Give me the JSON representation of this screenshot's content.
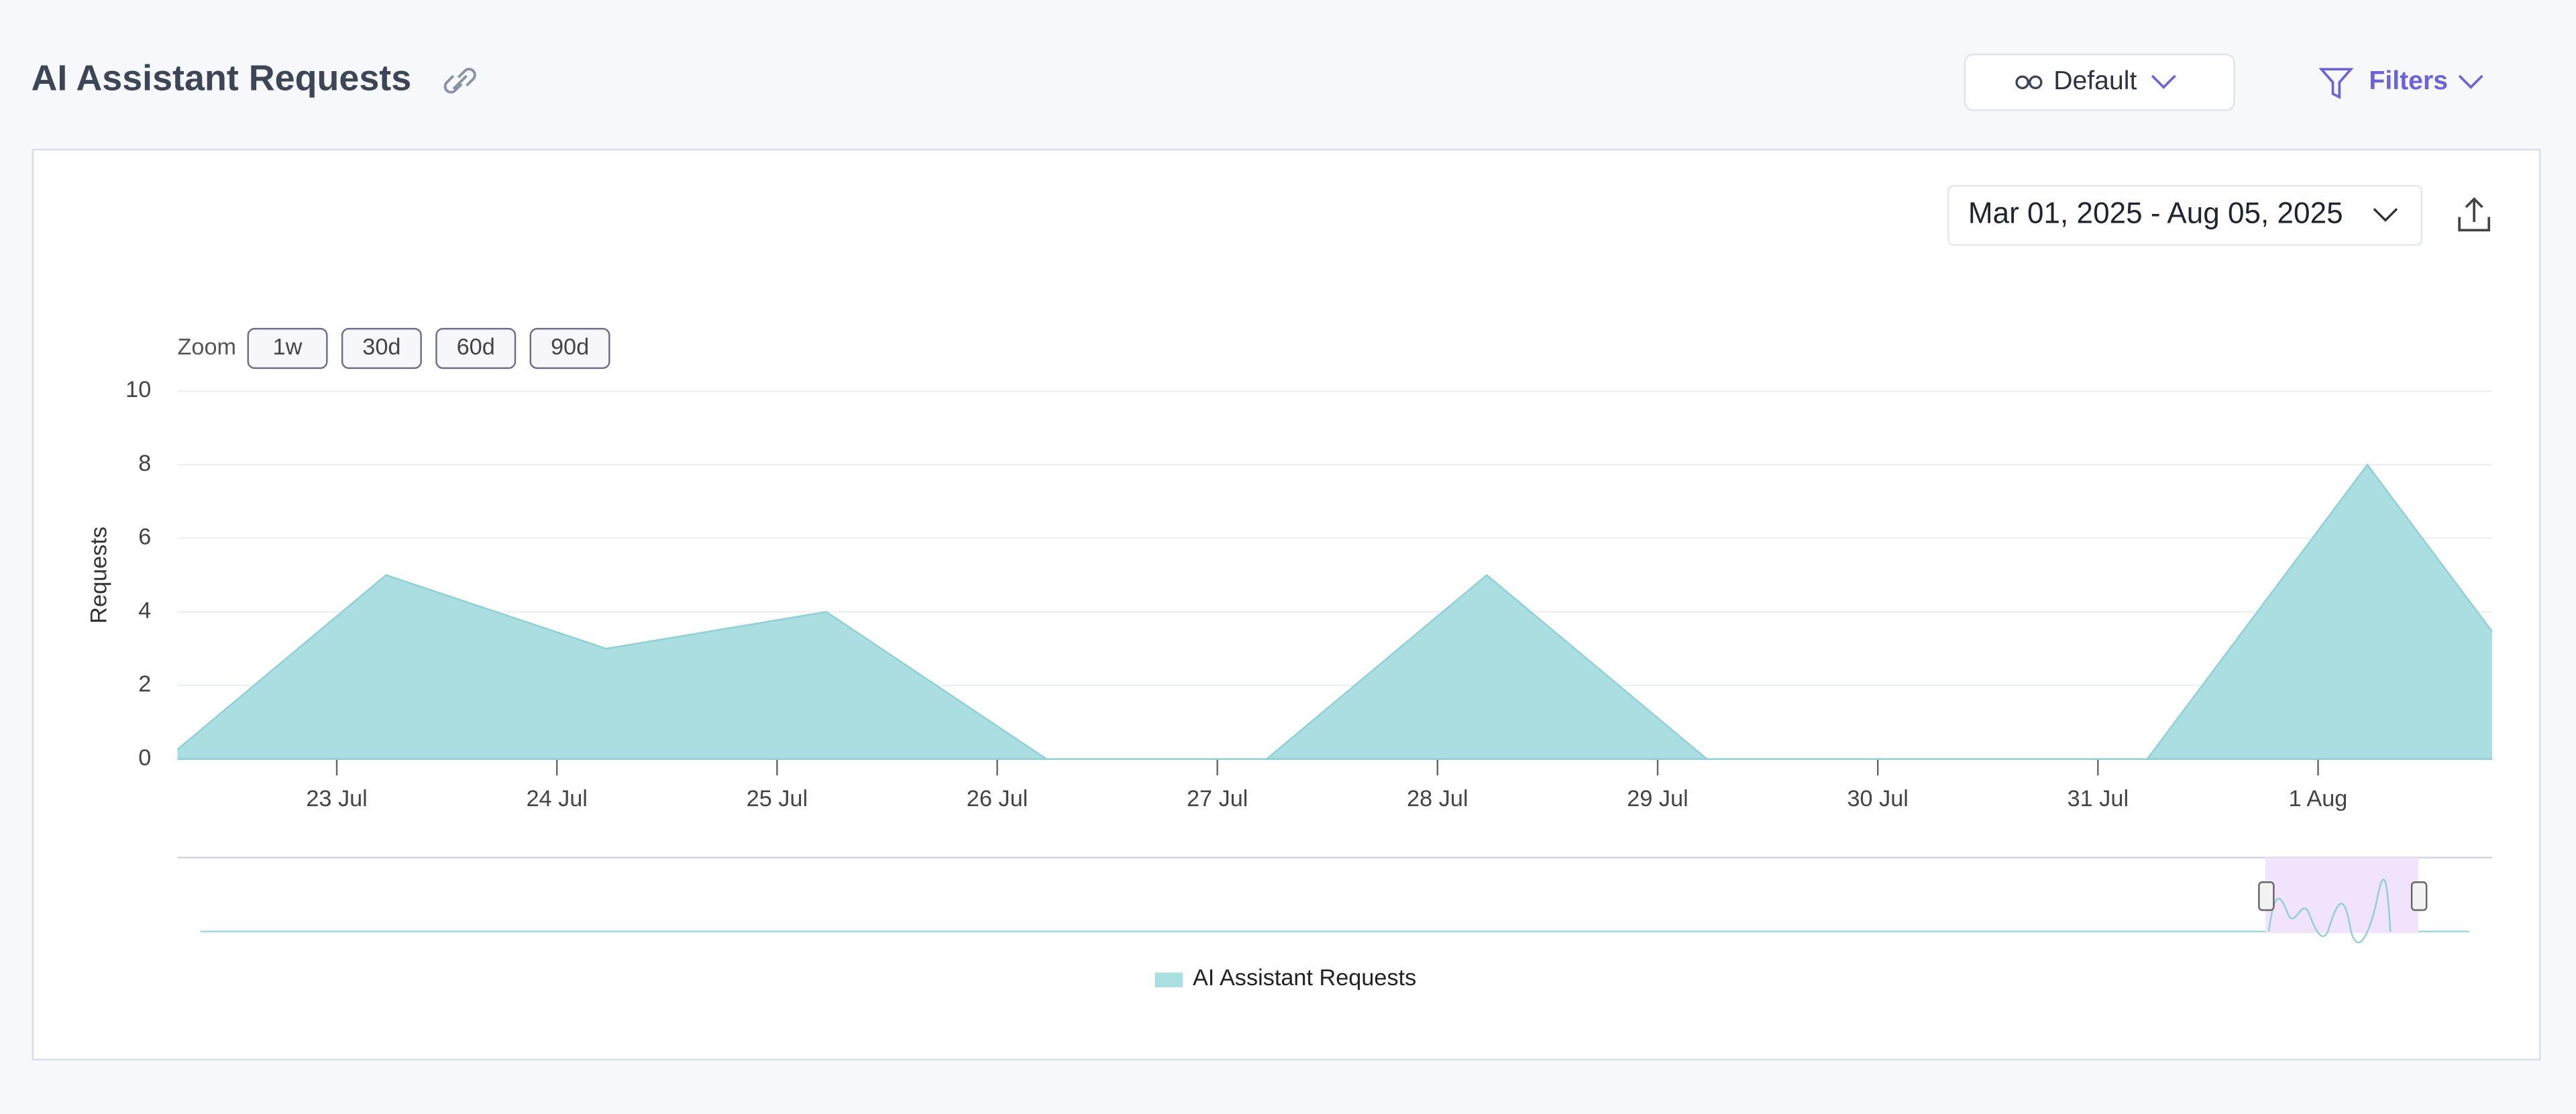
{
  "header": {
    "title": "AI Assistant Requests",
    "view": "Default",
    "filters": "Filters"
  },
  "date_range": "Mar 01, 2025 - Aug 05, 2025",
  "zoom": {
    "label": "Zoom",
    "buttons": [
      "1w",
      "30d",
      "60d",
      "90d"
    ]
  },
  "chart_data": {
    "type": "area",
    "y_label": "Requests",
    "categories": [
      null,
      "23 Jul",
      "24 Jul",
      "25 Jul",
      "26 Jul",
      "27 Jul",
      "28 Jul",
      "29 Jul",
      "30 Jul",
      "31 Jul",
      "1 Aug",
      null
    ],
    "series": [
      {
        "name": "AI Assistant Requests",
        "color": "#abdee1",
        "values": [
          0,
          5,
          3,
          4,
          0,
          0,
          5,
          0,
          0,
          0,
          8,
          0
        ]
      }
    ],
    "ylim": [
      0,
      10
    ],
    "yticks": [
      0,
      2,
      4,
      6,
      8,
      10
    ],
    "grid": true
  }
}
